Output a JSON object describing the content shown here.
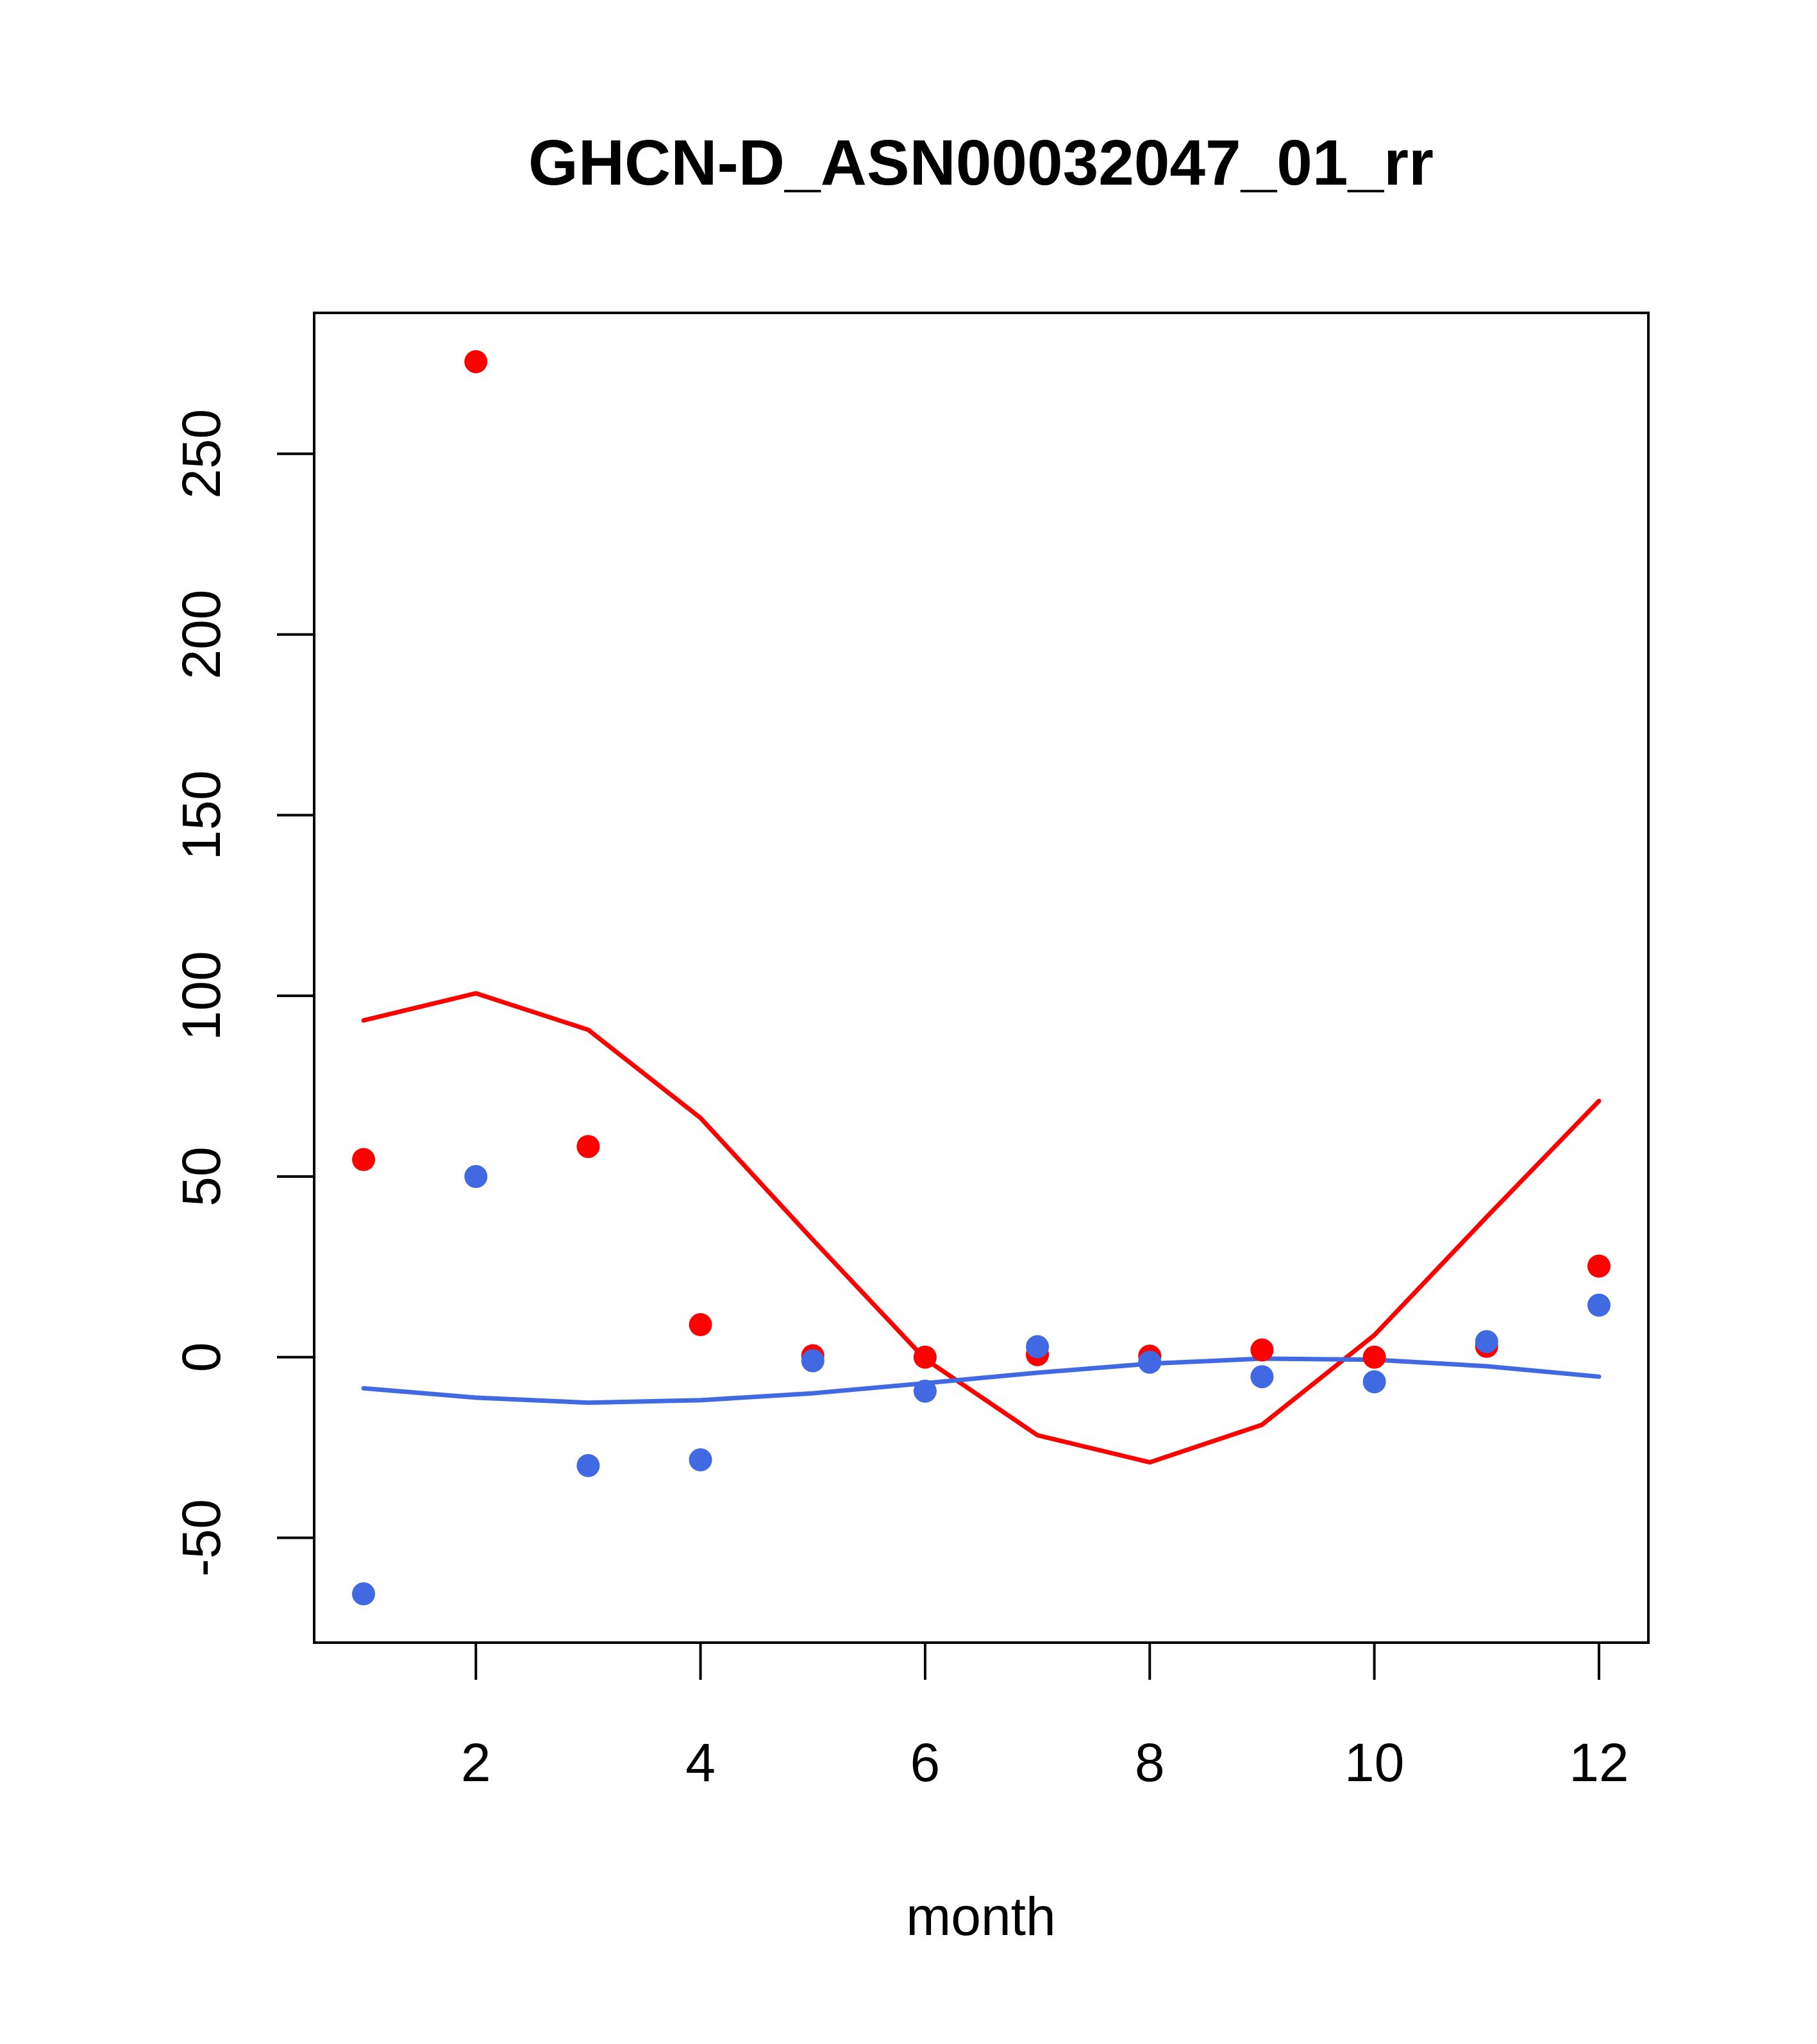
{
  "chart_data": {
    "type": "scatter",
    "title": "GHCN-D_ASN00032047_01_rr",
    "xlabel": "month",
    "ylabel": "",
    "xlim": [
      0.56,
      12.44
    ],
    "ylim": [
      -79,
      289
    ],
    "x_ticks": [
      2,
      4,
      6,
      8,
      10,
      12
    ],
    "x_tick_labels": [
      "2",
      "4",
      "6",
      "8",
      "10",
      "12"
    ],
    "y_ticks": [
      -50,
      0,
      50,
      100,
      150,
      200,
      250
    ],
    "y_tick_labels": [
      "-50",
      "0",
      "50",
      "100",
      "150",
      "200",
      "250"
    ],
    "grid": false,
    "x": [
      1,
      2,
      3,
      4,
      5,
      6,
      7,
      8,
      9,
      10,
      11,
      12
    ],
    "series": [
      {
        "name": "red points",
        "kind": "points",
        "color": "#ff0000",
        "values": [
          54.7,
          275.5,
          58.3,
          9.0,
          0.4,
          0.0,
          0.7,
          0.3,
          2.0,
          0.0,
          3.0,
          25.2
        ]
      },
      {
        "name": "blue points",
        "kind": "points",
        "color": "#4169e1",
        "values": [
          -65.5,
          50.0,
          -30.0,
          -28.4,
          -1.0,
          -9.4,
          2.9,
          -1.4,
          -5.4,
          -6.8,
          4.3,
          14.4
        ]
      },
      {
        "name": "red line",
        "kind": "line",
        "color": "#ff0000",
        "values": [
          93.2,
          100.7,
          90.6,
          66.2,
          32.5,
          -0.5,
          -21.6,
          -29.1,
          -18.7,
          6.1,
          38.8,
          70.9
        ]
      },
      {
        "name": "blue line",
        "kind": "line",
        "color": "#4169e1",
        "values": [
          -8.6,
          -11.2,
          -12.6,
          -11.9,
          -10.0,
          -7.2,
          -4.3,
          -1.8,
          -0.4,
          -0.7,
          -2.5,
          -5.4
        ]
      }
    ]
  }
}
